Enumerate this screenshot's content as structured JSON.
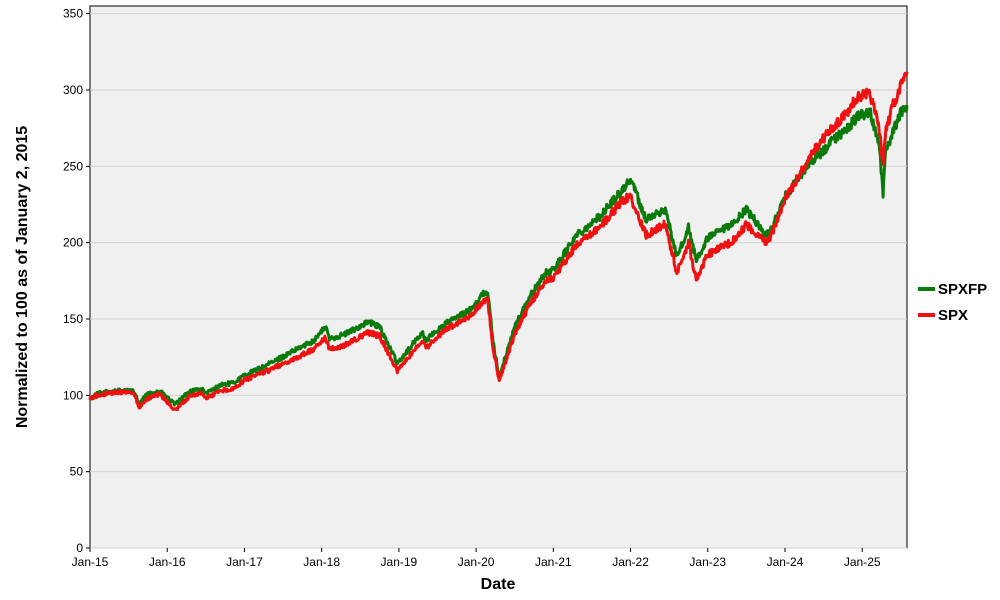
{
  "chart_data": {
    "type": "line",
    "title": "",
    "xlabel": "Date",
    "ylabel": "Normalized to 100 as of January 2, 2015",
    "ylim": [
      0,
      355
    ],
    "yticks": [
      0,
      50,
      100,
      150,
      200,
      250,
      300,
      350
    ],
    "xticks": [
      "Jan-15",
      "Jan-16",
      "Jan-17",
      "Jan-18",
      "Jan-19",
      "Jan-20",
      "Jan-21",
      "Jan-22",
      "Jan-23",
      "Jan-24",
      "Jan-25"
    ],
    "xlim_years": [
      2015.0,
      2025.58
    ],
    "grid": "horizontal",
    "legend": "right",
    "series": [
      {
        "name": "SPXFP",
        "color": "#0a7a0a",
        "x": [
          2015.0,
          2015.1,
          2015.3,
          2015.55,
          2015.64,
          2015.75,
          2015.9,
          2016.1,
          2016.3,
          2016.45,
          2016.5,
          2016.7,
          2016.85,
          2017.0,
          2017.3,
          2017.6,
          2017.9,
          2018.05,
          2018.1,
          2018.3,
          2018.6,
          2018.75,
          2018.98,
          2019.3,
          2019.35,
          2019.6,
          2019.9,
          2020.1,
          2020.15,
          2020.22,
          2020.3,
          2020.5,
          2020.7,
          2020.9,
          2021.0,
          2021.3,
          2021.6,
          2021.9,
          2022.0,
          2022.2,
          2022.45,
          2022.6,
          2022.75,
          2022.85,
          2023.0,
          2023.3,
          2023.5,
          2023.75,
          2023.8,
          2024.0,
          2024.25,
          2024.3,
          2024.5,
          2024.6,
          2024.75,
          2024.95,
          2025.1,
          2025.22,
          2025.27,
          2025.3,
          2025.4,
          2025.5,
          2025.58
        ],
        "y": [
          98,
          101,
          103,
          103,
          95,
          101,
          103,
          94,
          103,
          104,
          101,
          107,
          108,
          113,
          120,
          128,
          136,
          145,
          137,
          140,
          148,
          145,
          121,
          141,
          136,
          147,
          155,
          167,
          168,
          135,
          112,
          145,
          165,
          180,
          182,
          205,
          217,
          235,
          242,
          215,
          222,
          190,
          210,
          188,
          203,
          211,
          222,
          205,
          206,
          230,
          247,
          252,
          260,
          266,
          272,
          283,
          286,
          263,
          232,
          258,
          273,
          285,
          290
        ]
      },
      {
        "name": "SPX",
        "color": "#ee1111",
        "x": [
          2015.0,
          2015.1,
          2015.3,
          2015.55,
          2015.64,
          2015.75,
          2015.9,
          2016.1,
          2016.3,
          2016.45,
          2016.5,
          2016.7,
          2016.85,
          2017.0,
          2017.3,
          2017.6,
          2017.9,
          2018.05,
          2018.1,
          2018.3,
          2018.6,
          2018.75,
          2018.98,
          2019.3,
          2019.35,
          2019.6,
          2019.9,
          2020.1,
          2020.15,
          2020.22,
          2020.3,
          2020.5,
          2020.7,
          2020.9,
          2021.0,
          2021.3,
          2021.6,
          2021.9,
          2022.0,
          2022.2,
          2022.45,
          2022.6,
          2022.75,
          2022.85,
          2023.0,
          2023.3,
          2023.5,
          2023.75,
          2023.8,
          2024.0,
          2024.25,
          2024.3,
          2024.5,
          2024.6,
          2024.75,
          2024.95,
          2025.1,
          2025.22,
          2025.27,
          2025.3,
          2025.4,
          2025.5,
          2025.58
        ],
        "y": [
          98,
          100,
          102,
          102,
          92,
          98,
          101,
          90,
          100,
          101,
          98,
          103,
          104,
          110,
          116,
          123,
          130,
          138,
          130,
          133,
          141,
          139,
          116,
          136,
          131,
          143,
          151,
          162,
          163,
          130,
          110,
          140,
          160,
          175,
          177,
          198,
          210,
          228,
          230,
          205,
          212,
          180,
          200,
          176,
          192,
          200,
          212,
          200,
          202,
          228,
          250,
          256,
          268,
          275,
          282,
          296,
          298,
          275,
          250,
          272,
          290,
          302,
          312
        ]
      }
    ]
  }
}
